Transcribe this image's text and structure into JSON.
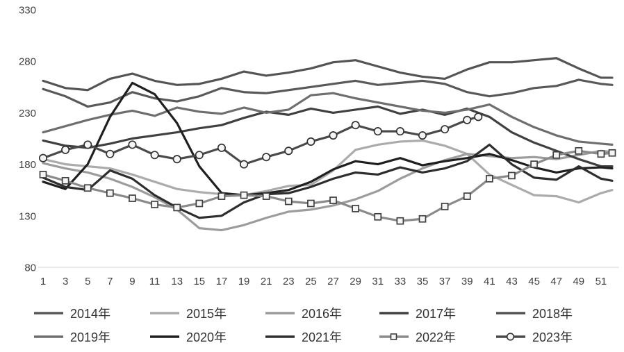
{
  "chart_data": {
    "type": "line",
    "title": "",
    "xlabel": "",
    "ylabel": "",
    "grid": "off",
    "legend_position": "bottom",
    "x_axis": {
      "ticks": [
        1,
        3,
        5,
        7,
        9,
        11,
        13,
        15,
        17,
        19,
        21,
        23,
        25,
        27,
        29,
        31,
        33,
        35,
        37,
        39,
        41,
        43,
        45,
        47,
        49,
        51
      ],
      "range": [
        1,
        52
      ]
    },
    "y_axis": {
      "ticks": [
        330,
        280,
        230,
        180,
        130,
        80
      ],
      "range": [
        80,
        330
      ]
    },
    "x": [
      1,
      3,
      5,
      7,
      9,
      11,
      13,
      15,
      17,
      19,
      21,
      23,
      25,
      27,
      29,
      31,
      33,
      35,
      37,
      39,
      41,
      43,
      45,
      47,
      49,
      51,
      52
    ],
    "series": [
      {
        "name": "2014年",
        "color": "#595959",
        "marker": "none",
        "values": [
          253,
          246,
          236,
          240,
          250,
          244,
          241,
          246,
          254,
          250,
          249,
          252,
          255,
          258,
          261,
          257,
          259,
          261,
          258,
          250,
          246,
          249,
          254,
          256,
          262,
          258,
          257
        ]
      },
      {
        "name": "2015年",
        "color": "#ABABAB",
        "marker": "none",
        "values": [
          185,
          180,
          178,
          176,
          170,
          163,
          156,
          153,
          151,
          150,
          154,
          159,
          160,
          174,
          194,
          199,
          202,
          203,
          198,
          190,
          170,
          160,
          150,
          149,
          143,
          152,
          155
        ]
      },
      {
        "name": "2016年",
        "color": "#9C9C9C",
        "marker": "none",
        "values": [
          181,
          176,
          172,
          166,
          158,
          148,
          136,
          118,
          116,
          121,
          128,
          134,
          136,
          140,
          146,
          154,
          166,
          176,
          184,
          190,
          188,
          186,
          187,
          185,
          189,
          193,
          192
        ]
      },
      {
        "name": "2017年",
        "color": "#404040",
        "marker": "none",
        "values": [
          203,
          198,
          196,
          200,
          205,
          208,
          211,
          215,
          218,
          225,
          231,
          228,
          234,
          230,
          233,
          236,
          229,
          233,
          228,
          234,
          226,
          211,
          201,
          193,
          185,
          178,
          178
        ]
      },
      {
        "name": "2018年",
        "color": "#545454",
        "marker": "none",
        "values": [
          261,
          254,
          252,
          263,
          268,
          261,
          257,
          258,
          263,
          270,
          266,
          269,
          273,
          279,
          281,
          275,
          269,
          265,
          263,
          272,
          279,
          279,
          281,
          283,
          273,
          264,
          264
        ]
      },
      {
        "name": "2019年",
        "color": "#6E6E6E",
        "marker": "none",
        "values": [
          211,
          217,
          223,
          228,
          232,
          227,
          235,
          231,
          229,
          235,
          230,
          233,
          247,
          249,
          244,
          240,
          236,
          232,
          230,
          233,
          238,
          226,
          216,
          208,
          202,
          200,
          199
        ]
      },
      {
        "name": "2020年",
        "color": "#1F1F1F",
        "marker": "none",
        "values": [
          163,
          156,
          180,
          226,
          259,
          248,
          220,
          178,
          152,
          150,
          152,
          155,
          163,
          175,
          183,
          180,
          186,
          179,
          183,
          186,
          190,
          184,
          177,
          172,
          176,
          177,
          176
        ]
      },
      {
        "name": "2021年",
        "color": "#2E2E2E",
        "marker": "none",
        "values": [
          167,
          158,
          155,
          174,
          166,
          150,
          138,
          128,
          130,
          143,
          151,
          152,
          158,
          166,
          172,
          170,
          177,
          172,
          176,
          183,
          199,
          180,
          167,
          165,
          178,
          166,
          164
        ]
      },
      {
        "name": "2022年",
        "color": "#8A8A8A",
        "marker": "square",
        "marker_fill": "#F5F5F5",
        "marker_stroke": "#404040",
        "values": [
          170,
          164,
          157,
          152,
          147,
          141,
          138,
          142,
          149,
          150,
          149,
          144,
          142,
          145,
          137,
          129,
          125,
          127,
          139,
          149,
          166,
          169,
          180,
          189,
          193,
          190,
          191
        ]
      },
      {
        "name": "2023年",
        "color": "#4A4A4A",
        "marker": "circle",
        "marker_fill": "#F5F5F5",
        "marker_stroke": "#333333",
        "x": [
          1,
          3,
          5,
          7,
          9,
          11,
          13,
          15,
          17,
          19,
          21,
          23,
          25,
          27,
          29,
          31,
          33,
          35,
          37,
          39,
          40
        ],
        "values": [
          186,
          194,
          199,
          190,
          199,
          189,
          185,
          189,
          196,
          180,
          187,
          193,
          202,
          208,
          218,
          212,
          212,
          208,
          214,
          223,
          226
        ]
      }
    ]
  },
  "axis_color": "#D9D9D9",
  "tick_label_color": "#404040",
  "legend_text_color": "#333333"
}
